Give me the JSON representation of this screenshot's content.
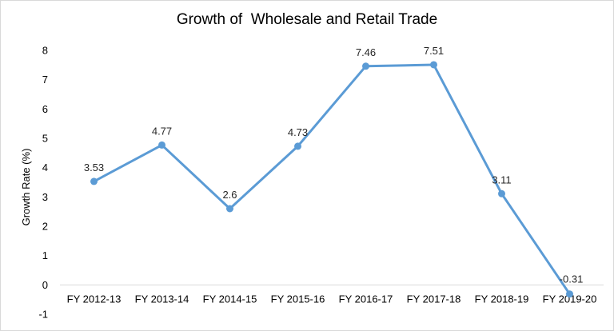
{
  "chart_data": {
    "type": "line",
    "title": "Growth of  Wholesale and Retail Trade",
    "xlabel": "",
    "ylabel": "Growth Rate (%)",
    "categories": [
      "FY 2012-13",
      "FY 2013-14",
      "FY 2014-15",
      "FY 2015-16",
      "FY 2016-17",
      "FY 2017-18",
      "FY 2018-19",
      "FY 2019-20"
    ],
    "series": [
      {
        "values": [
          3.53,
          4.77,
          2.6,
          4.73,
          7.46,
          7.51,
          3.11,
          -0.31
        ],
        "labels": [
          "3.53",
          "4.77",
          "2.6",
          "4.73",
          "7.46",
          "7.51",
          "3.11",
          "-0.31"
        ]
      }
    ],
    "ylim": [
      -1,
      8
    ],
    "yticks": [
      -1,
      0,
      1,
      2,
      3,
      4,
      5,
      6,
      7,
      8
    ],
    "grid": false,
    "legend": "none",
    "colors": {
      "line": "#5b9bd5"
    }
  }
}
